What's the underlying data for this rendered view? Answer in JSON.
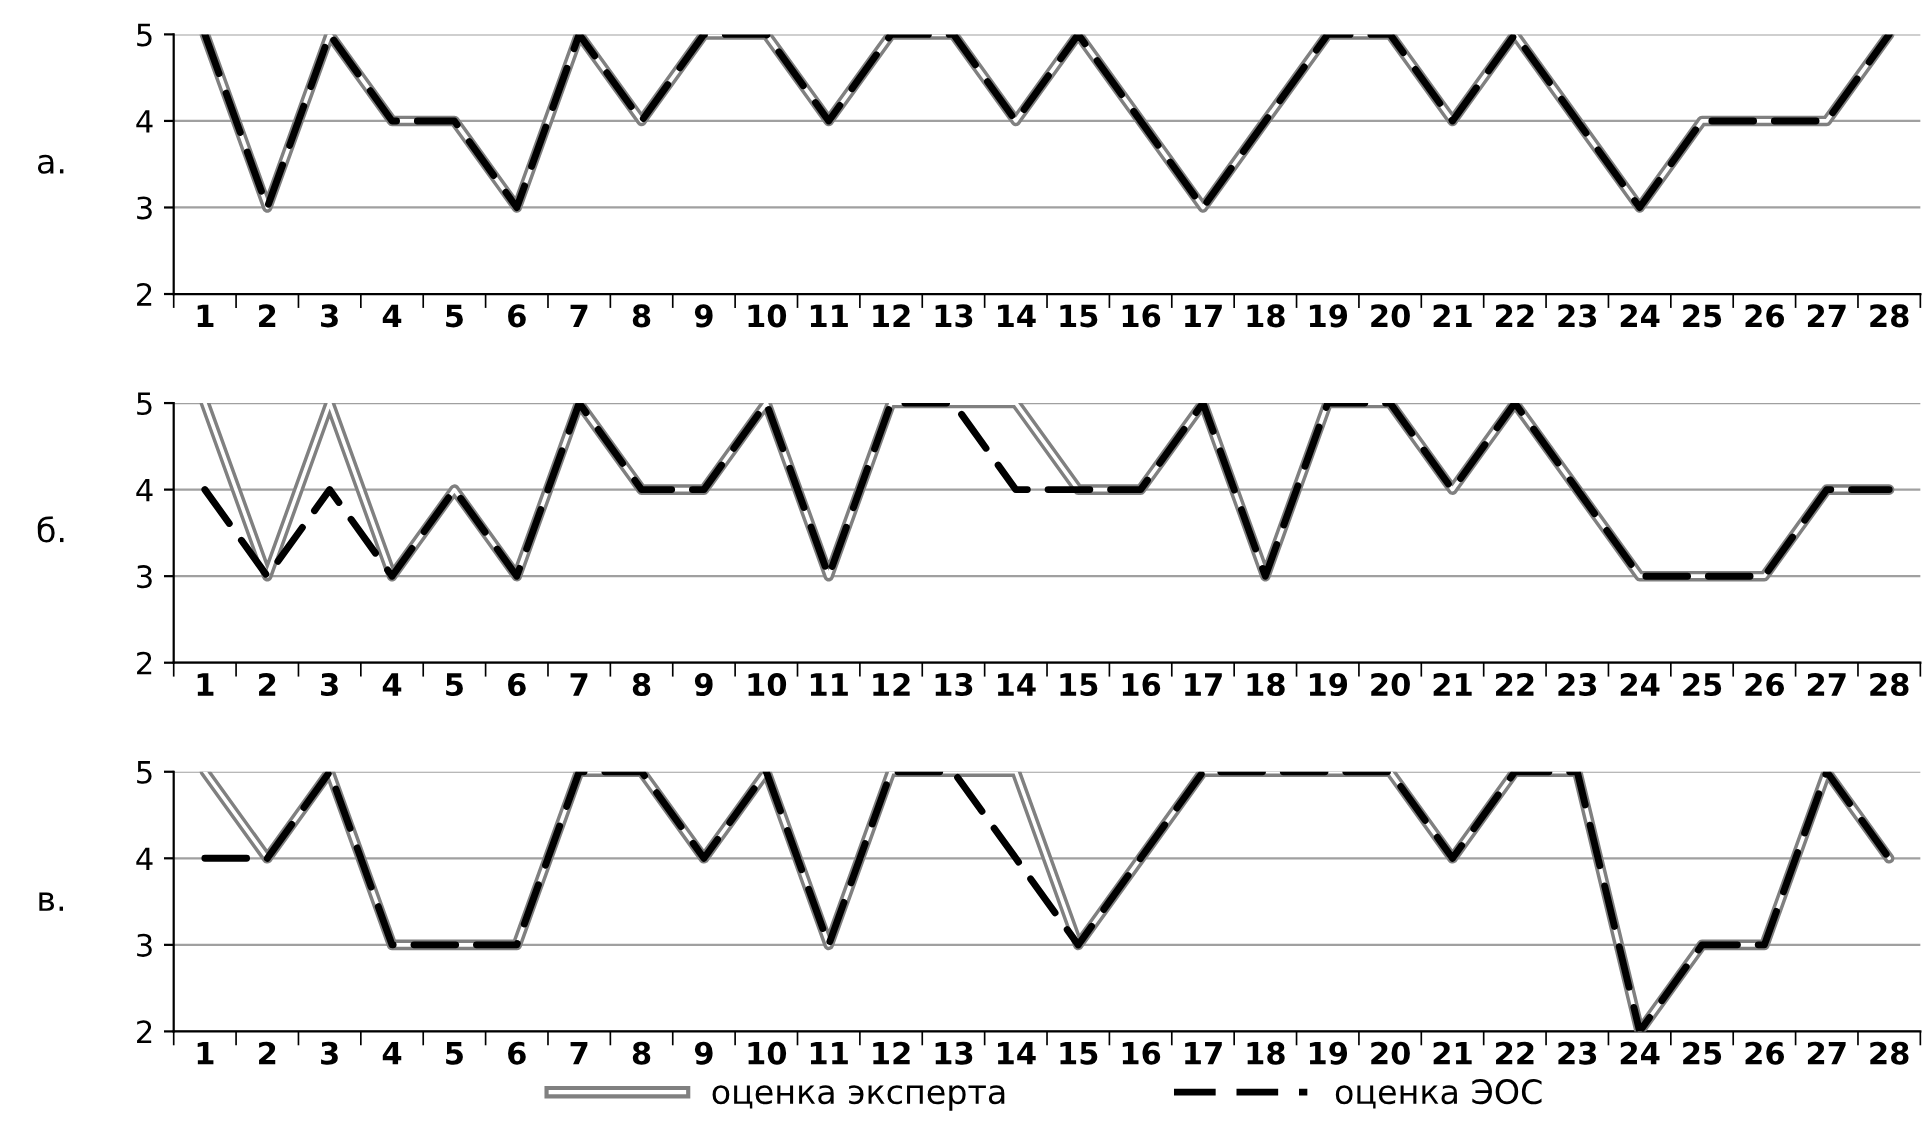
{
  "chart_data": [
    {
      "type": "line",
      "ylabel": "а.",
      "categories": [
        "1",
        "2",
        "3",
        "4",
        "5",
        "6",
        "7",
        "8",
        "9",
        "10",
        "11",
        "12",
        "13",
        "14",
        "15",
        "16",
        "17",
        "18",
        "19",
        "20",
        "21",
        "22",
        "23",
        "24",
        "25",
        "26",
        "27",
        "28"
      ],
      "ylim": [
        2,
        5
      ],
      "yticks": [
        2,
        3,
        4,
        5
      ],
      "grid": "y",
      "legend": false,
      "marker": "none",
      "series": [
        {
          "color": "#808080",
          "line_style": "solid",
          "values": [
            5,
            3,
            5,
            4,
            4,
            3,
            5,
            4,
            5,
            5,
            4,
            5,
            5,
            4,
            5,
            4,
            3,
            4,
            5,
            5,
            4,
            5,
            4,
            3,
            4,
            4,
            4,
            5
          ]
        },
        {
          "color": "#000000",
          "line_style": "dashed",
          "values": [
            5,
            3,
            5,
            4,
            4,
            3,
            5,
            4,
            5,
            5,
            4,
            5,
            5,
            4,
            5,
            4,
            3,
            4,
            5,
            5,
            4,
            5,
            4,
            3,
            4,
            4,
            4,
            5
          ]
        }
      ]
    },
    {
      "type": "line",
      "ylabel": "б.",
      "categories": [
        "1",
        "2",
        "3",
        "4",
        "5",
        "6",
        "7",
        "8",
        "9",
        "10",
        "11",
        "12",
        "13",
        "14",
        "15",
        "16",
        "17",
        "18",
        "19",
        "20",
        "21",
        "22",
        "23",
        "24",
        "25",
        "26",
        "27",
        "28"
      ],
      "ylim": [
        2,
        5
      ],
      "yticks": [
        2,
        3,
        4,
        5
      ],
      "grid": "y",
      "legend": false,
      "marker": "none",
      "series": [
        {
          "color": "#808080",
          "line_style": "solid",
          "values": [
            5,
            3,
            5,
            3,
            4,
            3,
            5,
            4,
            4,
            5,
            3,
            5,
            5,
            5,
            4,
            4,
            5,
            3,
            5,
            5,
            4,
            5,
            4,
            3,
            3,
            3,
            4,
            4
          ]
        },
        {
          "color": "#000000",
          "line_style": "dashed",
          "values": [
            4,
            3,
            4,
            3,
            4,
            3,
            5,
            4,
            4,
            5,
            3,
            5,
            5,
            4,
            4,
            4,
            5,
            3,
            5,
            5,
            4,
            5,
            4,
            3,
            3,
            3,
            4,
            4
          ]
        }
      ]
    },
    {
      "type": "line",
      "ylabel": "в.",
      "categories": [
        "1",
        "2",
        "3",
        "4",
        "5",
        "6",
        "7",
        "8",
        "9",
        "10",
        "11",
        "12",
        "13",
        "14",
        "15",
        "16",
        "17",
        "18",
        "19",
        "20",
        "21",
        "22",
        "23",
        "24",
        "25",
        "26",
        "27",
        "28"
      ],
      "ylim": [
        2,
        5
      ],
      "yticks": [
        2,
        3,
        4,
        5
      ],
      "grid": "y",
      "legend": "bottom",
      "marker": "none",
      "series": [
        {
          "name": "оценка эксперта",
          "color": "#808080",
          "line_style": "solid",
          "values": [
            5,
            4,
            5,
            3,
            3,
            3,
            5,
            5,
            4,
            5,
            3,
            5,
            5,
            5,
            3,
            4,
            5,
            5,
            5,
            5,
            4,
            5,
            5,
            2,
            3,
            3,
            5,
            4
          ]
        },
        {
          "name": "оценка ЭОС",
          "color": "#000000",
          "line_style": "dashed",
          "values": [
            4,
            4,
            5,
            3,
            3,
            3,
            5,
            5,
            4,
            5,
            3,
            5,
            5,
            4,
            3,
            4,
            5,
            5,
            5,
            5,
            4,
            5,
            5,
            2,
            3,
            3,
            5,
            4
          ]
        }
      ]
    }
  ]
}
